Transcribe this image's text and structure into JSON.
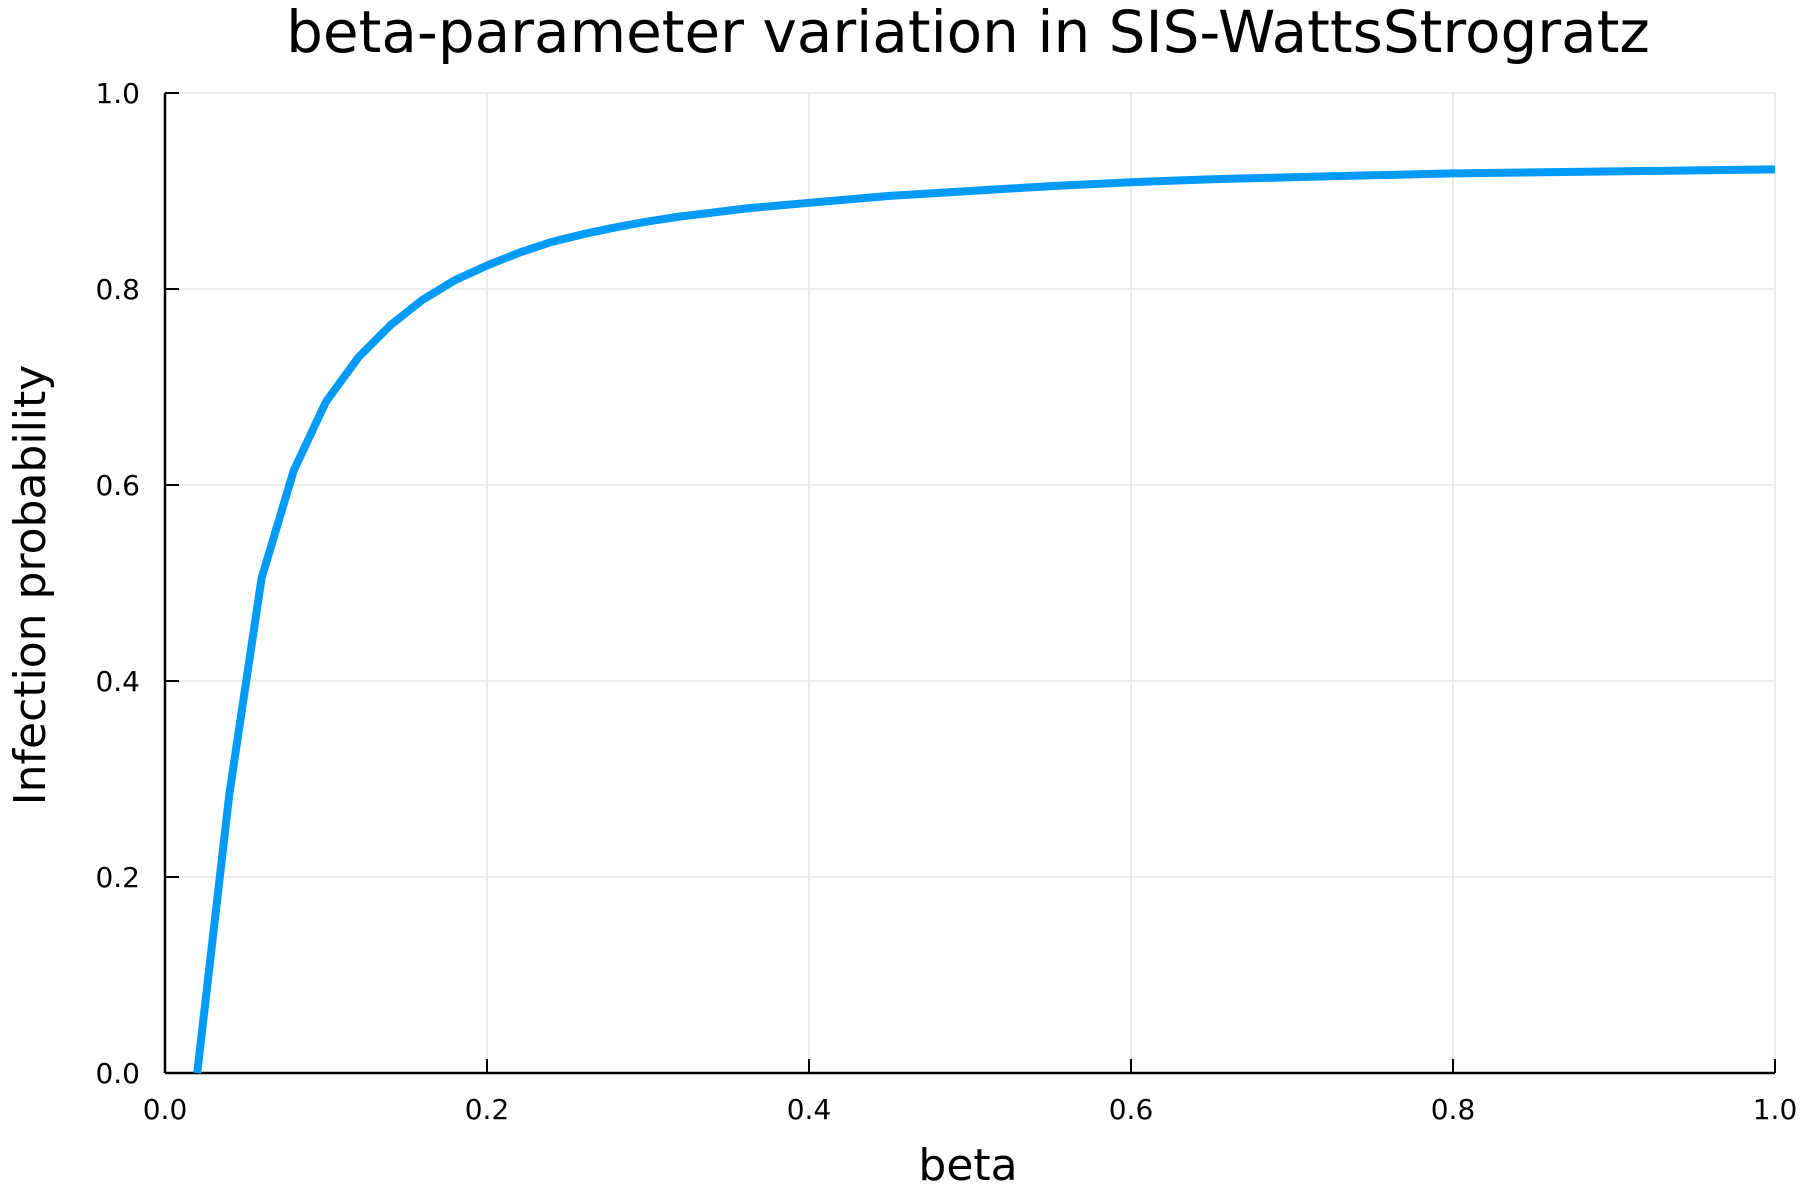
{
  "chart_data": {
    "type": "line",
    "title": "beta-parameter variation in SIS-WattsStrogratz",
    "xlabel": "beta",
    "ylabel": "Infection probability",
    "xlim": [
      0.0,
      1.0
    ],
    "ylim": [
      0.0,
      1.0
    ],
    "xticks": [
      0.0,
      0.2,
      0.4,
      0.6,
      0.8,
      1.0
    ],
    "yticks": [
      0.0,
      0.2,
      0.4,
      0.6,
      0.8,
      1.0
    ],
    "xtick_labels": [
      "0.0",
      "0.2",
      "0.4",
      "0.6",
      "0.8",
      "1.0"
    ],
    "ytick_labels": [
      "0.0",
      "0.2",
      "0.4",
      "0.6",
      "0.8",
      "1.0"
    ],
    "grid": true,
    "legend": "none",
    "series": [
      {
        "color": "#009af9",
        "x": [
          0.02,
          0.04,
          0.06,
          0.08,
          0.1,
          0.12,
          0.14,
          0.16,
          0.18,
          0.2,
          0.22,
          0.24,
          0.26,
          0.28,
          0.3,
          0.32,
          0.34,
          0.36,
          0.38,
          0.4,
          0.45,
          0.5,
          0.55,
          0.6,
          0.65,
          0.7,
          0.75,
          0.8,
          0.85,
          0.9,
          0.95,
          1.0
        ],
        "y": [
          0.0,
          0.285,
          0.505,
          0.615,
          0.685,
          0.73,
          0.763,
          0.789,
          0.809,
          0.824,
          0.837,
          0.848,
          0.856,
          0.863,
          0.869,
          0.874,
          0.878,
          0.882,
          0.885,
          0.888,
          0.895,
          0.9,
          0.905,
          0.909,
          0.912,
          0.914,
          0.916,
          0.918,
          0.919,
          0.92,
          0.921,
          0.922
        ]
      }
    ]
  }
}
